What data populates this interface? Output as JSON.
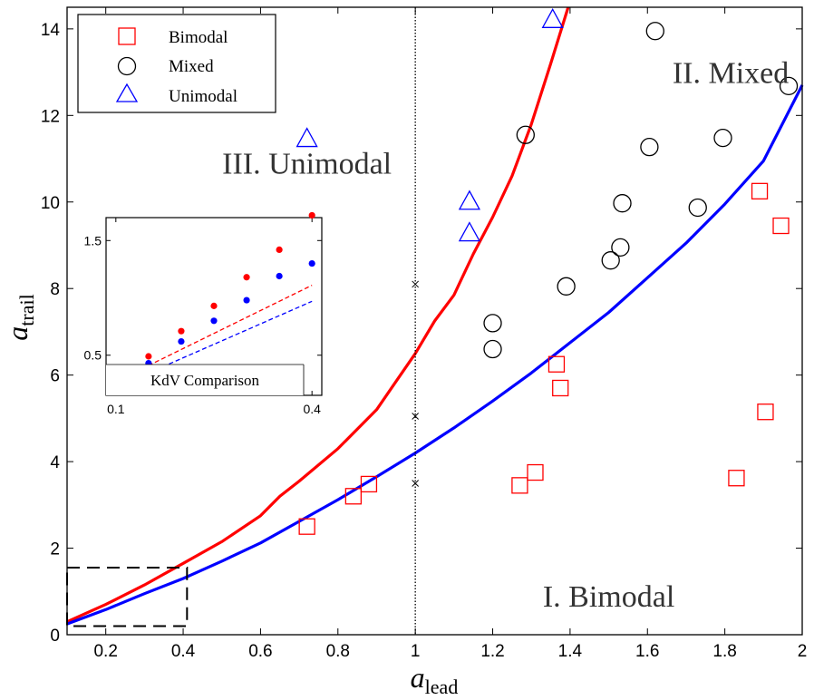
{
  "chart_data": {
    "type": "scatter",
    "xlabel_main": "a",
    "xlabel_sub": "lead",
    "ylabel_main": "a",
    "ylabel_sub": "trail",
    "xlim": [
      0.1,
      2
    ],
    "ylim": [
      0,
      14.5
    ],
    "xticks": [
      0.2,
      0.4,
      0.6,
      0.8,
      1,
      1.2,
      1.4,
      1.6,
      1.8,
      2
    ],
    "xtick_labels": [
      "0.2",
      "0.4",
      "0.6",
      "0.8",
      "1",
      "1.2",
      "1.4",
      "1.6",
      "1.8",
      "2"
    ],
    "yticks": [
      0,
      2,
      4,
      6,
      8,
      10,
      12,
      14
    ],
    "ytick_labels": [
      "0",
      "2",
      "4",
      "6",
      "8",
      "10",
      "12",
      "14"
    ],
    "vertical_reference_x": 1,
    "reference_marks": [
      {
        "x": 1,
        "y": 8.1
      },
      {
        "x": 1,
        "y": 5.05
      },
      {
        "x": 1,
        "y": 3.5
      }
    ],
    "series": [
      {
        "name": "Bimodal",
        "marker": "square",
        "color": "#ff0000",
        "points": [
          [
            0.72,
            2.5
          ],
          [
            0.84,
            3.2
          ],
          [
            0.88,
            3.48
          ],
          [
            1.27,
            3.45
          ],
          [
            1.31,
            3.75
          ],
          [
            1.365,
            6.25
          ],
          [
            1.375,
            5.7
          ],
          [
            1.83,
            3.62
          ],
          [
            1.89,
            10.25
          ],
          [
            1.905,
            5.15
          ],
          [
            1.945,
            9.45
          ]
        ]
      },
      {
        "name": "Mixed",
        "marker": "circle",
        "color": "#000000",
        "points": [
          [
            1.2,
            7.2
          ],
          [
            1.2,
            6.6
          ],
          [
            1.285,
            11.55
          ],
          [
            1.39,
            8.05
          ],
          [
            1.505,
            8.65
          ],
          [
            1.53,
            8.95
          ],
          [
            1.535,
            9.97
          ],
          [
            1.605,
            11.27
          ],
          [
            1.62,
            13.95
          ],
          [
            1.73,
            9.87
          ],
          [
            1.795,
            11.48
          ],
          [
            1.965,
            12.68
          ]
        ]
      },
      {
        "name": "Unimodal",
        "marker": "triangle",
        "color": "#0000ff",
        "points": [
          [
            0.72,
            11.45
          ],
          [
            1.14,
            10.0
          ],
          [
            1.14,
            9.27
          ],
          [
            1.355,
            14.2
          ]
        ]
      }
    ],
    "curves": [
      {
        "color": "#ff0000",
        "points": [
          [
            0.1,
            0.3
          ],
          [
            0.2,
            0.7
          ],
          [
            0.3,
            1.15
          ],
          [
            0.4,
            1.65
          ],
          [
            0.5,
            2.15
          ],
          [
            0.6,
            2.75
          ],
          [
            0.65,
            3.2
          ],
          [
            0.7,
            3.55
          ],
          [
            0.8,
            4.3
          ],
          [
            0.9,
            5.2
          ],
          [
            0.95,
            5.85
          ],
          [
            1.0,
            6.5
          ],
          [
            1.05,
            7.25
          ],
          [
            1.1,
            7.85
          ],
          [
            1.15,
            8.8
          ],
          [
            1.2,
            9.65
          ],
          [
            1.25,
            10.6
          ],
          [
            1.3,
            11.8
          ],
          [
            1.35,
            13.2
          ],
          [
            1.395,
            14.5
          ]
        ]
      },
      {
        "color": "#0000ff",
        "points": [
          [
            0.1,
            0.25
          ],
          [
            0.2,
            0.58
          ],
          [
            0.3,
            0.95
          ],
          [
            0.4,
            1.3
          ],
          [
            0.5,
            1.7
          ],
          [
            0.6,
            2.12
          ],
          [
            0.7,
            2.62
          ],
          [
            0.8,
            3.12
          ],
          [
            0.9,
            3.65
          ],
          [
            1.0,
            4.2
          ],
          [
            1.1,
            4.78
          ],
          [
            1.2,
            5.4
          ],
          [
            1.3,
            6.05
          ],
          [
            1.4,
            6.75
          ],
          [
            1.5,
            7.45
          ],
          [
            1.6,
            8.25
          ],
          [
            1.7,
            9.05
          ],
          [
            1.8,
            9.95
          ],
          [
            1.9,
            10.95
          ],
          [
            2.0,
            12.7
          ]
        ]
      }
    ],
    "dashed_box": {
      "x": [
        0.1,
        0.41
      ],
      "y": [
        0.2,
        1.55
      ]
    },
    "legend": {
      "placement": "top-left",
      "entries": [
        "Bimodal",
        "Mixed",
        "Unimodal"
      ]
    },
    "region_labels": [
      {
        "text": "II. Mixed",
        "x": 1.815,
        "y": 12.75
      },
      {
        "text": "III. Unimodal",
        "x": 0.72,
        "y": 10.65
      },
      {
        "text": "I. Bimodal",
        "x": 1.5,
        "y": 0.65
      }
    ],
    "inset": {
      "title": "KdV Comparison",
      "xlim": [
        0.085,
        0.415
      ],
      "ylim": [
        0.15,
        1.7
      ],
      "xticks": [
        0.1,
        0.4
      ],
      "xtick_labels": [
        "0.1",
        "0.4"
      ],
      "yticks": [
        0.5,
        1.5
      ],
      "ytick_labels": [
        "0.5",
        "1.5"
      ],
      "series": [
        {
          "color": "#ff0000",
          "points": [
            [
              0.1,
              0.31
            ],
            [
              0.15,
              0.49
            ],
            [
              0.2,
              0.71
            ],
            [
              0.25,
              0.93
            ],
            [
              0.3,
              1.18
            ],
            [
              0.35,
              1.42
            ],
            [
              0.4,
              1.72
            ]
          ]
        },
        {
          "color": "#0000ff",
          "points": [
            [
              0.1,
              0.27
            ],
            [
              0.15,
              0.43
            ],
            [
              0.2,
              0.62
            ],
            [
              0.25,
              0.8
            ],
            [
              0.3,
              0.98
            ],
            [
              0.35,
              1.19
            ],
            [
              0.4,
              1.3
            ]
          ]
        }
      ],
      "lines": [
        {
          "color": "#ff0000",
          "points": [
            [
              0.1,
              0.27
            ],
            [
              0.4,
              1.11
            ]
          ]
        },
        {
          "color": "#0000ff",
          "points": [
            [
              0.1,
              0.22
            ],
            [
              0.4,
              0.97
            ]
          ]
        }
      ]
    }
  }
}
